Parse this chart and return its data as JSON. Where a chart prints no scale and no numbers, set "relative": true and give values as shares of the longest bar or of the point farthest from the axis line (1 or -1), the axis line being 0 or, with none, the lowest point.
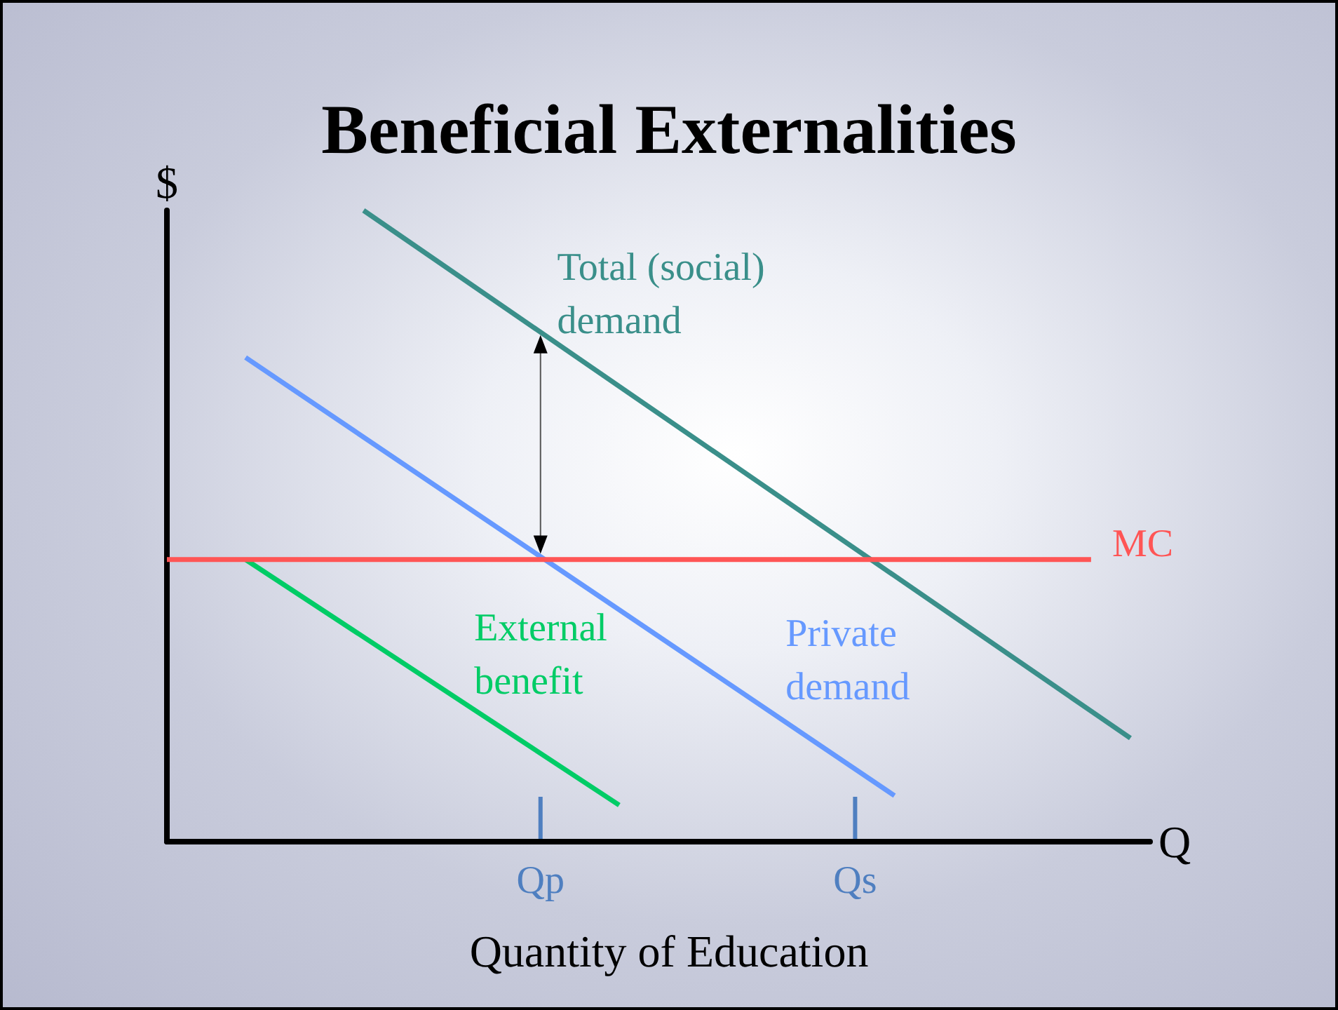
{
  "chart_data": {
    "type": "line",
    "title": "Beneficial Externalities",
    "xlabel": "Q",
    "ylabel": "$",
    "relative": true,
    "annotations": [
      "Quantity of Education"
    ],
    "categories": [
      null,
      null,
      null,
      null,
      null,
      null,
      null,
      null,
      null,
      null,
      null,
      null,
      null,
      null,
      null,
      null,
      null,
      null,
      null,
      "Qp",
      null,
      null,
      null,
      null,
      null,
      null,
      null,
      null,
      null,
      null,
      null,
      null,
      null,
      null,
      null,
      "Qs",
      null,
      null,
      null,
      null,
      null,
      null,
      null,
      null,
      null,
      null,
      null,
      null,
      null,
      null,
      null
    ],
    "series": [
      {
        "name": "Total (social) demand",
        "color": "#3a8f8a",
        "values": [
          null,
          null,
          null,
          null,
          null,
          null,
          null,
          null,
          null,
          null,
          1,
          null,
          null,
          null,
          null,
          null,
          null,
          null,
          null,
          null,
          null,
          null,
          null,
          null,
          null,
          null,
          null,
          null,
          null,
          null,
          null,
          null,
          null,
          null,
          null,
          null,
          null,
          null,
          null,
          null,
          null,
          null,
          null,
          null,
          null,
          null,
          null,
          null,
          null,
          0.164,
          null
        ]
      },
      {
        "name": "Private demand",
        "color": "#6699ff",
        "values": [
          null,
          null,
          null,
          null,
          0.767,
          null,
          null,
          null,
          null,
          null,
          null,
          null,
          null,
          null,
          null,
          null,
          null,
          null,
          null,
          null,
          null,
          null,
          null,
          null,
          null,
          null,
          null,
          null,
          null,
          null,
          null,
          null,
          null,
          null,
          null,
          null,
          null,
          0.073,
          null,
          null,
          null,
          null,
          null,
          null,
          null,
          null,
          null,
          null,
          null,
          null,
          null
        ]
      },
      {
        "name": "External benefit",
        "color": "#00cc66",
        "values": [
          null,
          null,
          null,
          null,
          0.447,
          null,
          null,
          null,
          null,
          null,
          null,
          null,
          null,
          null,
          null,
          null,
          null,
          null,
          null,
          null,
          null,
          null,
          null,
          0.058,
          null,
          null,
          null,
          null,
          null,
          null,
          null,
          null,
          null,
          null,
          null,
          null,
          null,
          null,
          null,
          null,
          null,
          null,
          null,
          null,
          null,
          null,
          null,
          null,
          null,
          null,
          null
        ]
      },
      {
        "name": "MC",
        "color": "#ff5555",
        "values": [
          0.447,
          null,
          null,
          null,
          null,
          null,
          null,
          null,
          null,
          null,
          null,
          null,
          null,
          null,
          null,
          null,
          null,
          null,
          null,
          null,
          null,
          null,
          null,
          null,
          null,
          null,
          null,
          null,
          null,
          null,
          null,
          null,
          null,
          null,
          null,
          null,
          null,
          null,
          null,
          null,
          null,
          null,
          null,
          null,
          null,
          null,
          null,
          0.447,
          null,
          null,
          null
        ]
      }
    ],
    "grid": false,
    "legend": false
  }
}
